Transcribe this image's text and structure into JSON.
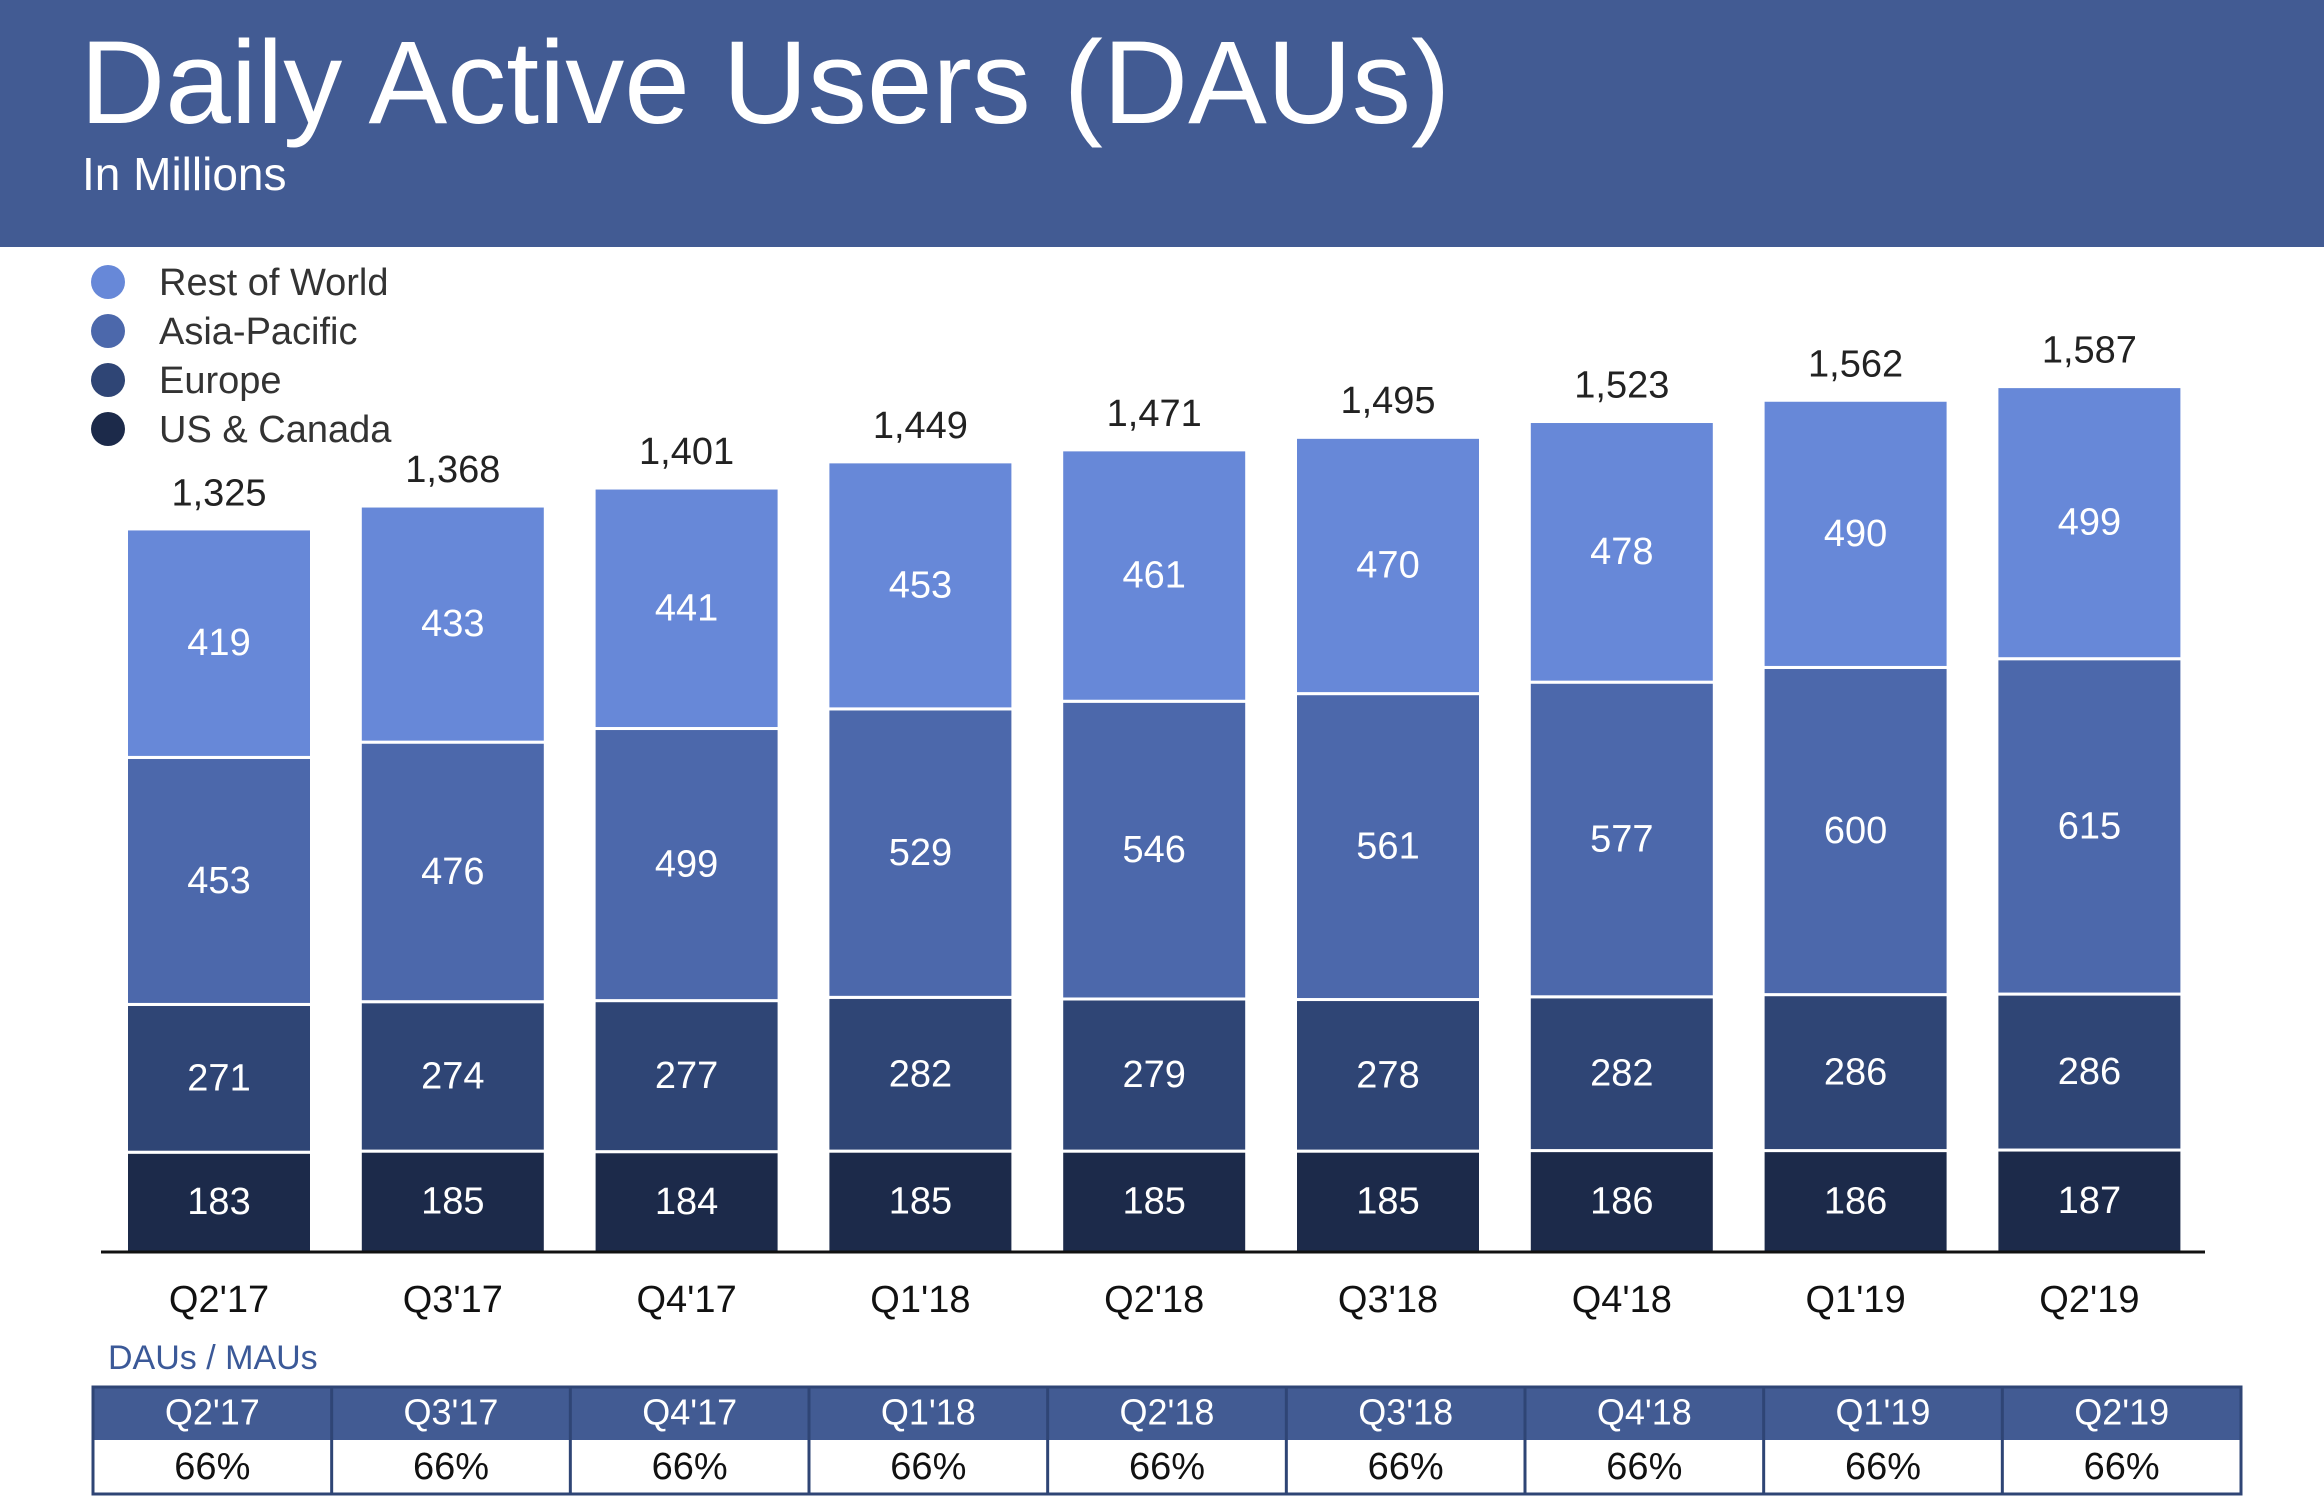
{
  "chart_data": {
    "type": "stacked_bar",
    "title": "Daily Active Users (DAUs)",
    "subtitle": "In Millions",
    "categories": [
      "Q2'17",
      "Q3'17",
      "Q4'17",
      "Q1'18",
      "Q2'18",
      "Q3'18",
      "Q4'18",
      "Q1'19",
      "Q2'19"
    ],
    "series": [
      {
        "name": "US & Canada",
        "color": "#1c2a4a",
        "values": [
          183,
          185,
          184,
          185,
          185,
          185,
          186,
          186,
          187
        ]
      },
      {
        "name": "Europe",
        "color": "#2f4575",
        "values": [
          271,
          274,
          277,
          282,
          279,
          278,
          282,
          286,
          286
        ]
      },
      {
        "name": "Asia-Pacific",
        "color": "#4c68ab",
        "values": [
          453,
          476,
          499,
          529,
          546,
          561,
          577,
          600,
          615
        ]
      },
      {
        "name": "Rest of World",
        "color": "#6788d8",
        "values": [
          419,
          433,
          441,
          453,
          461,
          470,
          478,
          490,
          499
        ]
      }
    ],
    "totals": {
      "values": [
        1325,
        1368,
        1401,
        1449,
        1471,
        1495,
        1523,
        1562,
        1587
      ],
      "value_labels": [
        "1,325",
        "1,368",
        "1,401",
        "1,449",
        "1,471",
        "1,495",
        "1,523",
        "1,562",
        "1,587"
      ]
    },
    "ylim": [
      0,
      1700
    ],
    "legend": "upper left"
  },
  "table": {
    "title": "DAUs / MAUs",
    "header": [
      "Q2'17",
      "Q3'17",
      "Q4'17",
      "Q1'18",
      "Q2'18",
      "Q3'18",
      "Q4'18",
      "Q1'19",
      "Q2'19"
    ],
    "rows": [
      [
        "66%",
        "66%",
        "66%",
        "66%",
        "66%",
        "66%",
        "66%",
        "66%",
        "66%"
      ]
    ]
  }
}
